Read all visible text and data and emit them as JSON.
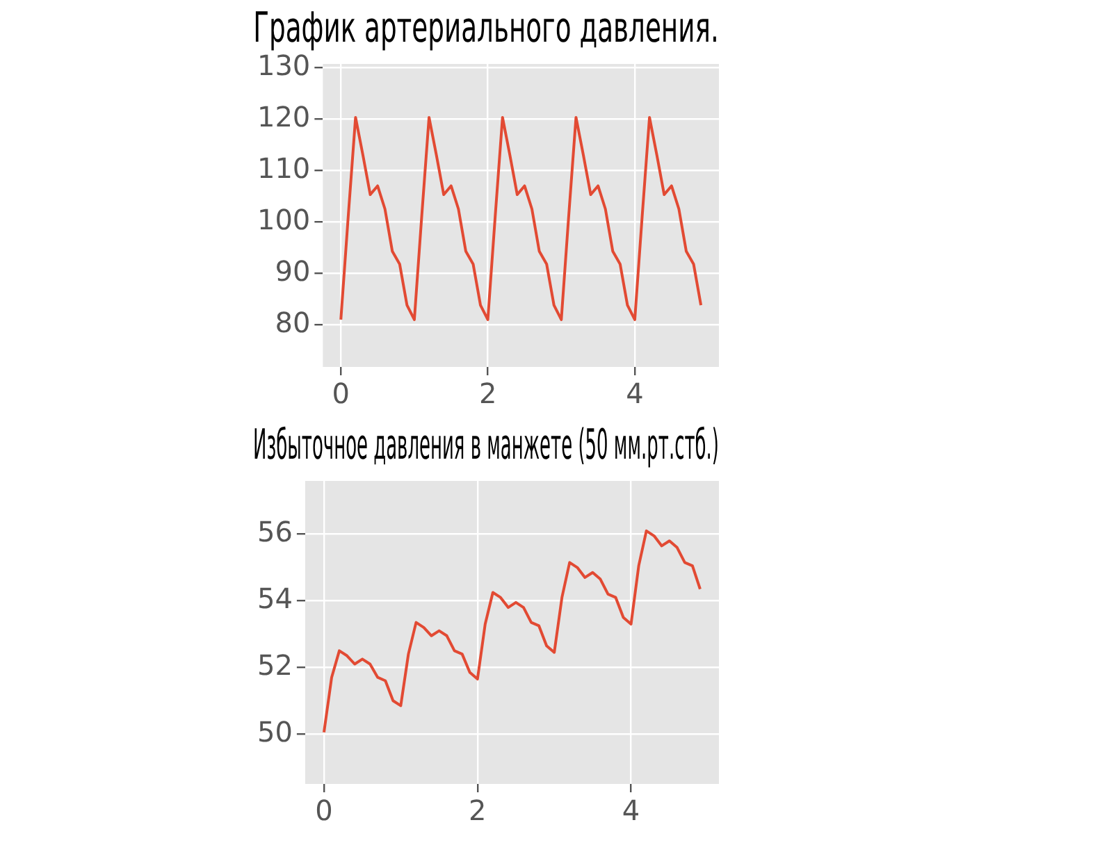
{
  "chart_data": [
    {
      "type": "line",
      "title": "График артериального давления.",
      "x": [
        0,
        0.1,
        0.2,
        0.3,
        0.4,
        0.5,
        0.6,
        0.7,
        0.8,
        0.9,
        1,
        1.1,
        1.2,
        1.3,
        1.4,
        1.5,
        1.6,
        1.7,
        1.8,
        1.9,
        2,
        2.1,
        2.2,
        2.3,
        2.4,
        2.5,
        2.6,
        2.7,
        2.8,
        2.9,
        3,
        3.1,
        3.2,
        3.3,
        3.4,
        3.5,
        3.6,
        3.7,
        3.8,
        3.9,
        4,
        4.1,
        4.2,
        4.3,
        4.4,
        4.5,
        4.6,
        4.7,
        4.8,
        4.9
      ],
      "series": [
        {
          "color": "#e24a33",
          "values": [
            81,
            101,
            120.3,
            113,
            105.3,
            107,
            102.5,
            94.3,
            91.8,
            83.8,
            81,
            101,
            120.3,
            113,
            105.3,
            107,
            102.5,
            94.3,
            91.8,
            83.8,
            81,
            101,
            120.3,
            113,
            105.3,
            107,
            102.5,
            94.3,
            91.8,
            83.8,
            81,
            101,
            120.3,
            113,
            105.3,
            107,
            102.5,
            94.3,
            91.8,
            83.8,
            81,
            101,
            120.3,
            113,
            105.3,
            107,
            102.5,
            94.3,
            91.8,
            83.8
          ]
        }
      ],
      "xlim": [
        -0.245,
        5.145
      ],
      "xticks": [
        0,
        2,
        4
      ],
      "ylim": [
        71.8,
        130.7
      ],
      "yticks": [
        80,
        90,
        100,
        110,
        120,
        130
      ],
      "grid": true,
      "legend": false,
      "marker": "none",
      "line_style": "solid"
    },
    {
      "type": "line",
      "title": "Избыточное давления в манжете (50 мм.рт.стб.)",
      "x": [
        0,
        0.1,
        0.2,
        0.3,
        0.4,
        0.5,
        0.6,
        0.7,
        0.8,
        0.9,
        1,
        1.1,
        1.2,
        1.3,
        1.4,
        1.5,
        1.6,
        1.7,
        1.8,
        1.9,
        2,
        2.1,
        2.2,
        2.3,
        2.4,
        2.5,
        2.6,
        2.7,
        2.8,
        2.9,
        3,
        3.1,
        3.2,
        3.3,
        3.4,
        3.5,
        3.6,
        3.7,
        3.8,
        3.9,
        4,
        4.1,
        4.2,
        4.3,
        4.4,
        4.5,
        4.6,
        4.7,
        4.8,
        4.9
      ],
      "series": [
        {
          "color": "#e24a33",
          "values": [
            50.05,
            51.7,
            52.5,
            52.35,
            52.1,
            52.25,
            52.1,
            51.7,
            51.6,
            51.0,
            50.85,
            52.4,
            53.35,
            53.2,
            52.95,
            53.1,
            52.95,
            52.5,
            52.4,
            51.85,
            51.65,
            53.3,
            54.25,
            54.1,
            53.8,
            53.95,
            53.8,
            53.35,
            53.25,
            52.65,
            52.45,
            54.1,
            55.15,
            55.0,
            54.7,
            54.85,
            54.65,
            54.2,
            54.1,
            53.5,
            53.3,
            55.05,
            56.1,
            55.95,
            55.65,
            55.8,
            55.6,
            55.15,
            55.05,
            54.35
          ]
        }
      ],
      "xlim": [
        -0.245,
        5.145
      ],
      "xticks": [
        0,
        2,
        4
      ],
      "ylim": [
        48.5,
        57.6
      ],
      "yticks": [
        50,
        52,
        54,
        56
      ],
      "grid": true,
      "legend": false,
      "marker": "none",
      "line_style": "solid"
    }
  ]
}
